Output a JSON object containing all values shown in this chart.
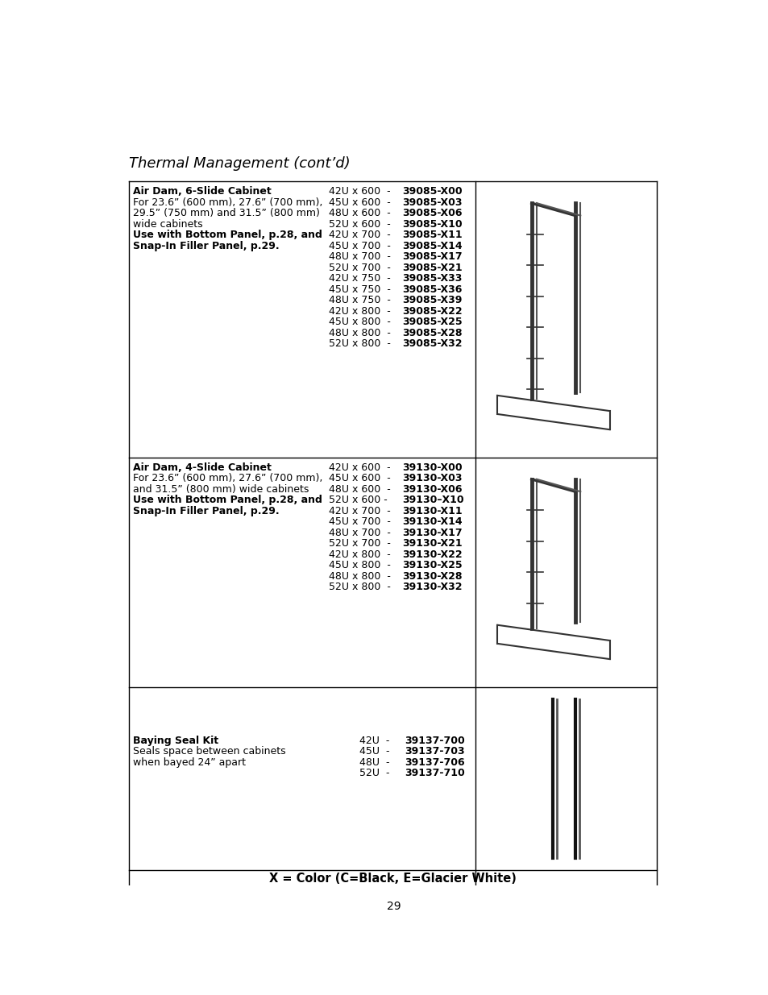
{
  "title": "Thermal Management (cont’d)",
  "page_number": "29",
  "background_color": "#ffffff",
  "section1": {
    "title_bold": "Air Dam, 6-Slide Cabinet",
    "desc_lines": [
      [
        "For 23.6” (600 mm), 27.6” (700 mm),",
        false
      ],
      [
        "29.5” (750 mm) and 31.5” (800 mm)",
        false
      ],
      [
        "wide cabinets",
        false
      ],
      [
        "Use with Bottom Panel, p.28, and",
        true
      ],
      [
        "Snap-In Filler Panel, p.29.",
        true
      ]
    ],
    "items": [
      [
        "42U x 600  - ",
        "39085-X00"
      ],
      [
        "45U x 600  - ",
        "39085-X03"
      ],
      [
        "48U x 600  - ",
        "39085-X06"
      ],
      [
        "52U x 600  - ",
        "39085-X10"
      ],
      [
        "42U x 700  - ",
        "39085-X11"
      ],
      [
        "45U x 700  - ",
        "39085-X14"
      ],
      [
        "48U x 700  - ",
        "39085-X17"
      ],
      [
        "52U x 700  - ",
        "39085-X21"
      ],
      [
        "42U x 750  - ",
        "39085-X33"
      ],
      [
        "45U x 750  - ",
        "39085-X36"
      ],
      [
        "48U x 750  - ",
        "39085-X39"
      ],
      [
        "42U x 800  - ",
        "39085-X22"
      ],
      [
        "45U x 800  - ",
        "39085-X25"
      ],
      [
        "48U x 800  - ",
        "39085-X28"
      ],
      [
        "52U x 800  - ",
        "39085-X32"
      ]
    ]
  },
  "section2": {
    "title_bold": "Air Dam, 4-Slide Cabinet",
    "desc_lines": [
      [
        "For 23.6” (600 mm), 27.6” (700 mm),",
        false
      ],
      [
        "and 31.5” (800 mm) wide cabinets",
        false
      ],
      [
        "Use with Bottom Panel, p.28, and",
        true
      ],
      [
        "Snap-In Filler Panel, p.29.",
        true
      ]
    ],
    "items": [
      [
        "42U x 600  - ",
        "39130-X00"
      ],
      [
        "45U x 600  - ",
        "39130-X03"
      ],
      [
        "48U x 600  - ",
        "39130-X06"
      ],
      [
        "52U x 600 - ",
        "39130–X10"
      ],
      [
        "42U x 700  - ",
        "39130-X11"
      ],
      [
        "45U x 700  - ",
        "39130-X14"
      ],
      [
        "48U x 700  - ",
        "39130-X17"
      ],
      [
        "52U x 700  - ",
        "39130-X21"
      ],
      [
        "42U x 800  - ",
        "39130-X22"
      ],
      [
        "45U x 800  - ",
        "39130-X25"
      ],
      [
        "48U x 800  - ",
        "39130-X28"
      ],
      [
        "52U x 800  - ",
        "39130-X32"
      ]
    ]
  },
  "section3": {
    "title_bold": "Baying Seal Kit",
    "desc_lines": [
      [
        "Seals space between cabinets",
        false
      ],
      [
        "when bayed 24” apart",
        false
      ]
    ],
    "items": [
      [
        "42U  - ",
        "39137-700"
      ],
      [
        "45U  - ",
        "39137-703"
      ],
      [
        "48U  - ",
        "39137-706"
      ],
      [
        "52U  - ",
        "39137-710"
      ]
    ]
  },
  "footer": "X = Color (C=Black, E=Glacier White)"
}
